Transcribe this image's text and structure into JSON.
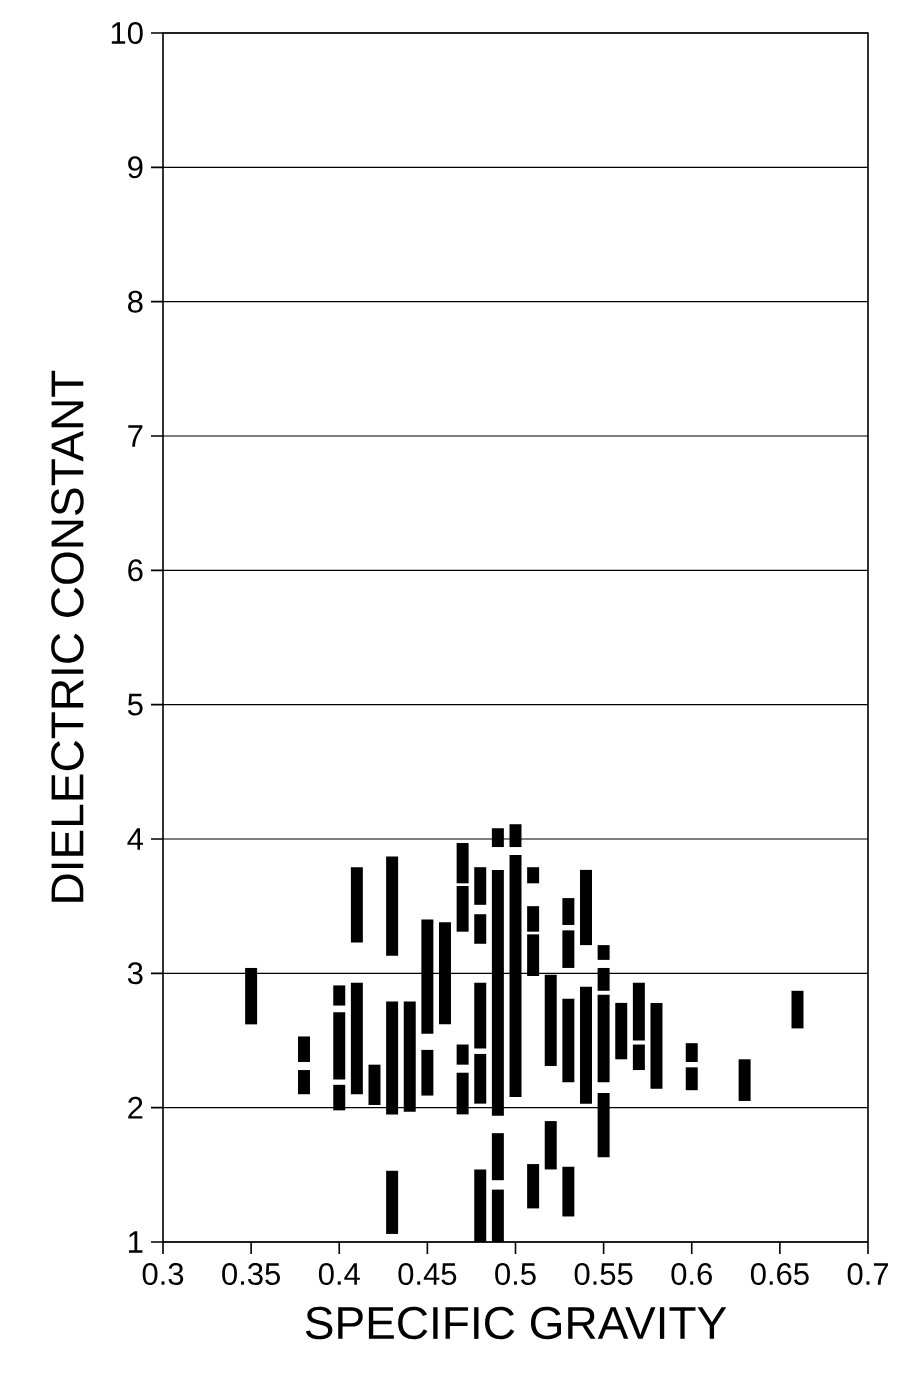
{
  "chart_data": {
    "type": "bar",
    "xlabel": "SPECIFIC GRAVITY",
    "ylabel": "DIELECTRIC CONSTANT",
    "grid": "y",
    "series": [
      {
        "color": "#000000",
        "x": [
          0.35,
          0.38,
          0.4,
          0.41,
          0.42,
          0.43,
          0.44,
          0.45,
          0.46,
          0.47,
          0.48,
          0.49,
          0.5,
          0.51,
          0.52,
          0.53,
          0.54,
          0.55,
          0.56,
          0.57,
          0.58,
          0.6,
          0.63,
          0.66
        ],
        "base": [
          2.62,
          2.34,
          2.76,
          3.23,
          2.02,
          3.13,
          1.97,
          2.55,
          2.62,
          3.67,
          3.51,
          3.94,
          3.94,
          3.67,
          2.31,
          3.36,
          3.21,
          3.1,
          2.36,
          2.5,
          2.14,
          2.34,
          2.05,
          2.59
        ],
        "values": [
          0.42,
          0.19,
          0.15,
          0.56,
          0.3,
          0.74,
          0.82,
          0.85,
          0.76,
          0.3,
          0.28,
          0.14,
          0.17,
          0.12,
          0.68,
          0.2,
          0.56,
          0.11,
          0.42,
          0.43,
          0.64,
          0.14,
          0.31,
          0.28
        ]
      },
      {
        "color": "#000000",
        "x": [
          0.38,
          0.4,
          0.41,
          0.43,
          0.45,
          0.47,
          0.48,
          0.49,
          0.5,
          0.51,
          0.52,
          0.53,
          0.54,
          0.55,
          0.57,
          0.6
        ],
        "base": [
          2.1,
          2.21,
          2.1,
          1.95,
          2.09,
          3.31,
          3.22,
          1.94,
          2.08,
          3.31,
          1.54,
          3.04,
          2.03,
          2.87,
          2.28,
          2.13
        ],
        "values": [
          0.18,
          0.5,
          0.83,
          0.84,
          0.34,
          0.34,
          0.22,
          1.83,
          1.8,
          0.19,
          0.36,
          0.28,
          0.87,
          0.17,
          0.19,
          0.17
        ]
      },
      {
        "color": "#000000",
        "x": [
          0.4,
          0.43,
          0.47,
          0.48,
          0.49,
          0.51,
          0.53,
          0.55
        ],
        "base": [
          1.98,
          1.06,
          2.32,
          2.44,
          1.46,
          2.98,
          2.19,
          2.19
        ],
        "values": [
          0.19,
          0.47,
          0.15,
          0.49,
          0.35,
          0.31,
          0.62,
          0.65
        ]
      },
      {
        "color": "#000000",
        "x": [
          0.47,
          0.48,
          0.49,
          0.51,
          0.53,
          0.55
        ],
        "base": [
          1.95,
          2.03,
          1.0,
          1.25,
          1.19,
          1.63
        ],
        "values": [
          0.31,
          0.37,
          0.39,
          0.33,
          0.37,
          0.48
        ]
      },
      {
        "color": "#000000",
        "x": [
          0.48
        ],
        "base": [
          1.0
        ],
        "values": [
          0.54
        ]
      }
    ],
    "xlim": [
      0.3,
      0.7
    ],
    "xticks": [
      0.3,
      0.35,
      0.4,
      0.45,
      0.5,
      0.55,
      0.6,
      0.65,
      0.7
    ],
    "ylim": [
      1,
      10
    ],
    "yticks": [
      1,
      2,
      3,
      4,
      5,
      6,
      7,
      8,
      9,
      10
    ]
  }
}
